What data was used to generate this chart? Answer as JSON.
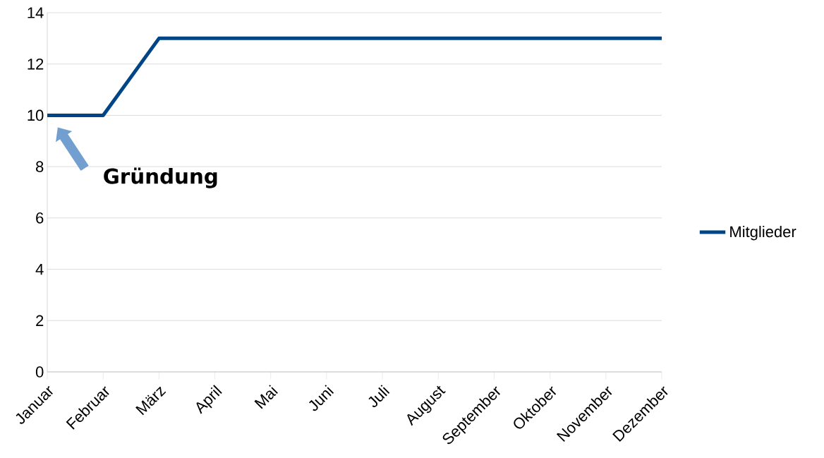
{
  "chart_data": {
    "type": "line",
    "categories": [
      "Januar",
      "Februar",
      "März",
      "April",
      "Mai",
      "Juni",
      "Juli",
      "August",
      "September",
      "Oktober",
      "November",
      "Dezember"
    ],
    "series": [
      {
        "name": "Mitglieder",
        "color": "#004586",
        "values": [
          10,
          10,
          13,
          13,
          13,
          13,
          13,
          13,
          13,
          13,
          13,
          13
        ]
      }
    ],
    "ylim": [
      0,
      14
    ],
    "yticks": [
      0,
      2,
      4,
      6,
      8,
      10,
      12,
      14
    ],
    "grid": "y",
    "legend": "right",
    "annotations": [
      "Gründung"
    ]
  }
}
